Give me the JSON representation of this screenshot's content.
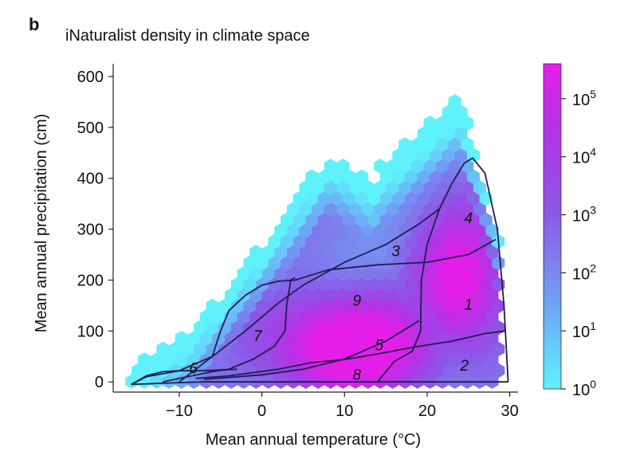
{
  "panel_label": "b",
  "chart_data": {
    "type": "heatmap",
    "title": "iNaturalist density in climate space",
    "xlabel": "Mean annual temperature (°C)",
    "ylabel": "Mean annual precipitation (cm)",
    "xlim": [
      -18,
      31
    ],
    "ylim": [
      -20,
      625
    ],
    "x_ticks": [
      -10,
      0,
      10,
      20,
      30
    ],
    "x_tick_labels": [
      "−10",
      "0",
      "10",
      "20",
      "30"
    ],
    "y_ticks": [
      0,
      100,
      200,
      300,
      400,
      500,
      600
    ],
    "y_tick_labels": [
      "0",
      "100",
      "200",
      "300",
      "400",
      "500",
      "600"
    ],
    "colorbar": {
      "scale": "log",
      "min": 1,
      "max": 400000,
      "ticks": [
        1,
        10,
        100,
        1000,
        10000,
        100000
      ],
      "tick_labels": [
        {
          "base": "10",
          "exp": "0"
        },
        {
          "base": "10",
          "exp": "1"
        },
        {
          "base": "10",
          "exp": "2"
        },
        {
          "base": "10",
          "exp": "3"
        },
        {
          "base": "10",
          "exp": "4"
        },
        {
          "base": "10",
          "exp": "5"
        }
      ],
      "colors": [
        "#5ff2fb",
        "#6ea6f5",
        "#8d55e6",
        "#b433e6",
        "#e41ee8"
      ]
    },
    "grid": false,
    "legend": "colorbar-right",
    "biome_labels": [
      {
        "text": "1",
        "x": 25.0,
        "y": 150
      },
      {
        "text": "2",
        "x": 24.5,
        "y": 30
      },
      {
        "text": "3",
        "x": 16.2,
        "y": 255
      },
      {
        "text": "4",
        "x": 25.0,
        "y": 320
      },
      {
        "text": "5",
        "x": 14.2,
        "y": 70
      },
      {
        "text": "6",
        "x": -8.3,
        "y": 25
      },
      {
        "text": "7",
        "x": -0.5,
        "y": 88
      },
      {
        "text": "8",
        "x": 11.5,
        "y": 12
      },
      {
        "text": "9",
        "x": 11.5,
        "y": 158
      }
    ],
    "biome_lines": [
      [
        [
          -15.8,
          -5
        ],
        [
          -11,
          -2
        ],
        [
          -7,
          0
        ],
        [
          0,
          0
        ],
        [
          10,
          0
        ],
        [
          20,
          0
        ],
        [
          29.8,
          0
        ]
      ],
      [
        [
          -15.8,
          -5
        ],
        [
          -14,
          10
        ],
        [
          -10,
          22
        ],
        [
          -6,
          50
        ],
        [
          -2,
          100
        ],
        [
          2,
          155
        ],
        [
          5,
          190
        ],
        [
          10,
          235
        ],
        [
          15,
          270
        ],
        [
          19,
          310
        ],
        [
          21.5,
          340
        ],
        [
          23,
          390
        ],
        [
          24.5,
          430
        ],
        [
          25.5,
          440
        ],
        [
          27,
          410
        ],
        [
          28.5,
          300
        ],
        [
          29.3,
          150
        ],
        [
          29.8,
          0
        ]
      ],
      [
        [
          -10,
          0
        ],
        [
          -8,
          25
        ],
        [
          -6,
          50
        ],
        [
          -5,
          100
        ],
        [
          -4,
          140
        ],
        [
          -2,
          170
        ],
        [
          0,
          190
        ],
        [
          2,
          198
        ],
        [
          4,
          200
        ],
        [
          8,
          220
        ],
        [
          14,
          230
        ],
        [
          20,
          235
        ],
        [
          25,
          250
        ],
        [
          28.3,
          280
        ]
      ],
      [
        [
          -8,
          7
        ],
        [
          -4,
          12
        ],
        [
          2,
          25
        ],
        [
          6,
          38
        ],
        [
          10,
          44
        ],
        [
          14,
          55
        ],
        [
          19,
          70
        ],
        [
          23,
          80
        ],
        [
          27,
          95
        ],
        [
          29.5,
          100
        ]
      ],
      [
        [
          -7,
          5
        ],
        [
          -3,
          10
        ],
        [
          0,
          14
        ],
        [
          5,
          25
        ],
        [
          10,
          45
        ],
        [
          15,
          80
        ],
        [
          19,
          120
        ]
      ],
      [
        [
          14,
          0
        ],
        [
          16,
          40
        ],
        [
          18.2,
          60
        ],
        [
          19.2,
          100
        ],
        [
          19.3,
          200
        ],
        [
          20,
          270
        ],
        [
          21.5,
          340
        ]
      ],
      [
        [
          -12,
          0
        ],
        [
          -9,
          10
        ],
        [
          -6,
          20
        ],
        [
          -4,
          25
        ],
        [
          -1,
          45
        ],
        [
          1.5,
          70
        ],
        [
          2.8,
          100
        ],
        [
          3,
          150
        ],
        [
          3.5,
          200
        ],
        [
          4,
          205
        ]
      ],
      [
        [
          -15.8,
          -5
        ],
        [
          -14,
          12
        ],
        [
          -12,
          20
        ],
        [
          -10,
          22
        ],
        [
          -7,
          22
        ],
        [
          -3,
          25
        ]
      ]
    ],
    "density_note": "hexbin counts per cell, log color scale"
  }
}
